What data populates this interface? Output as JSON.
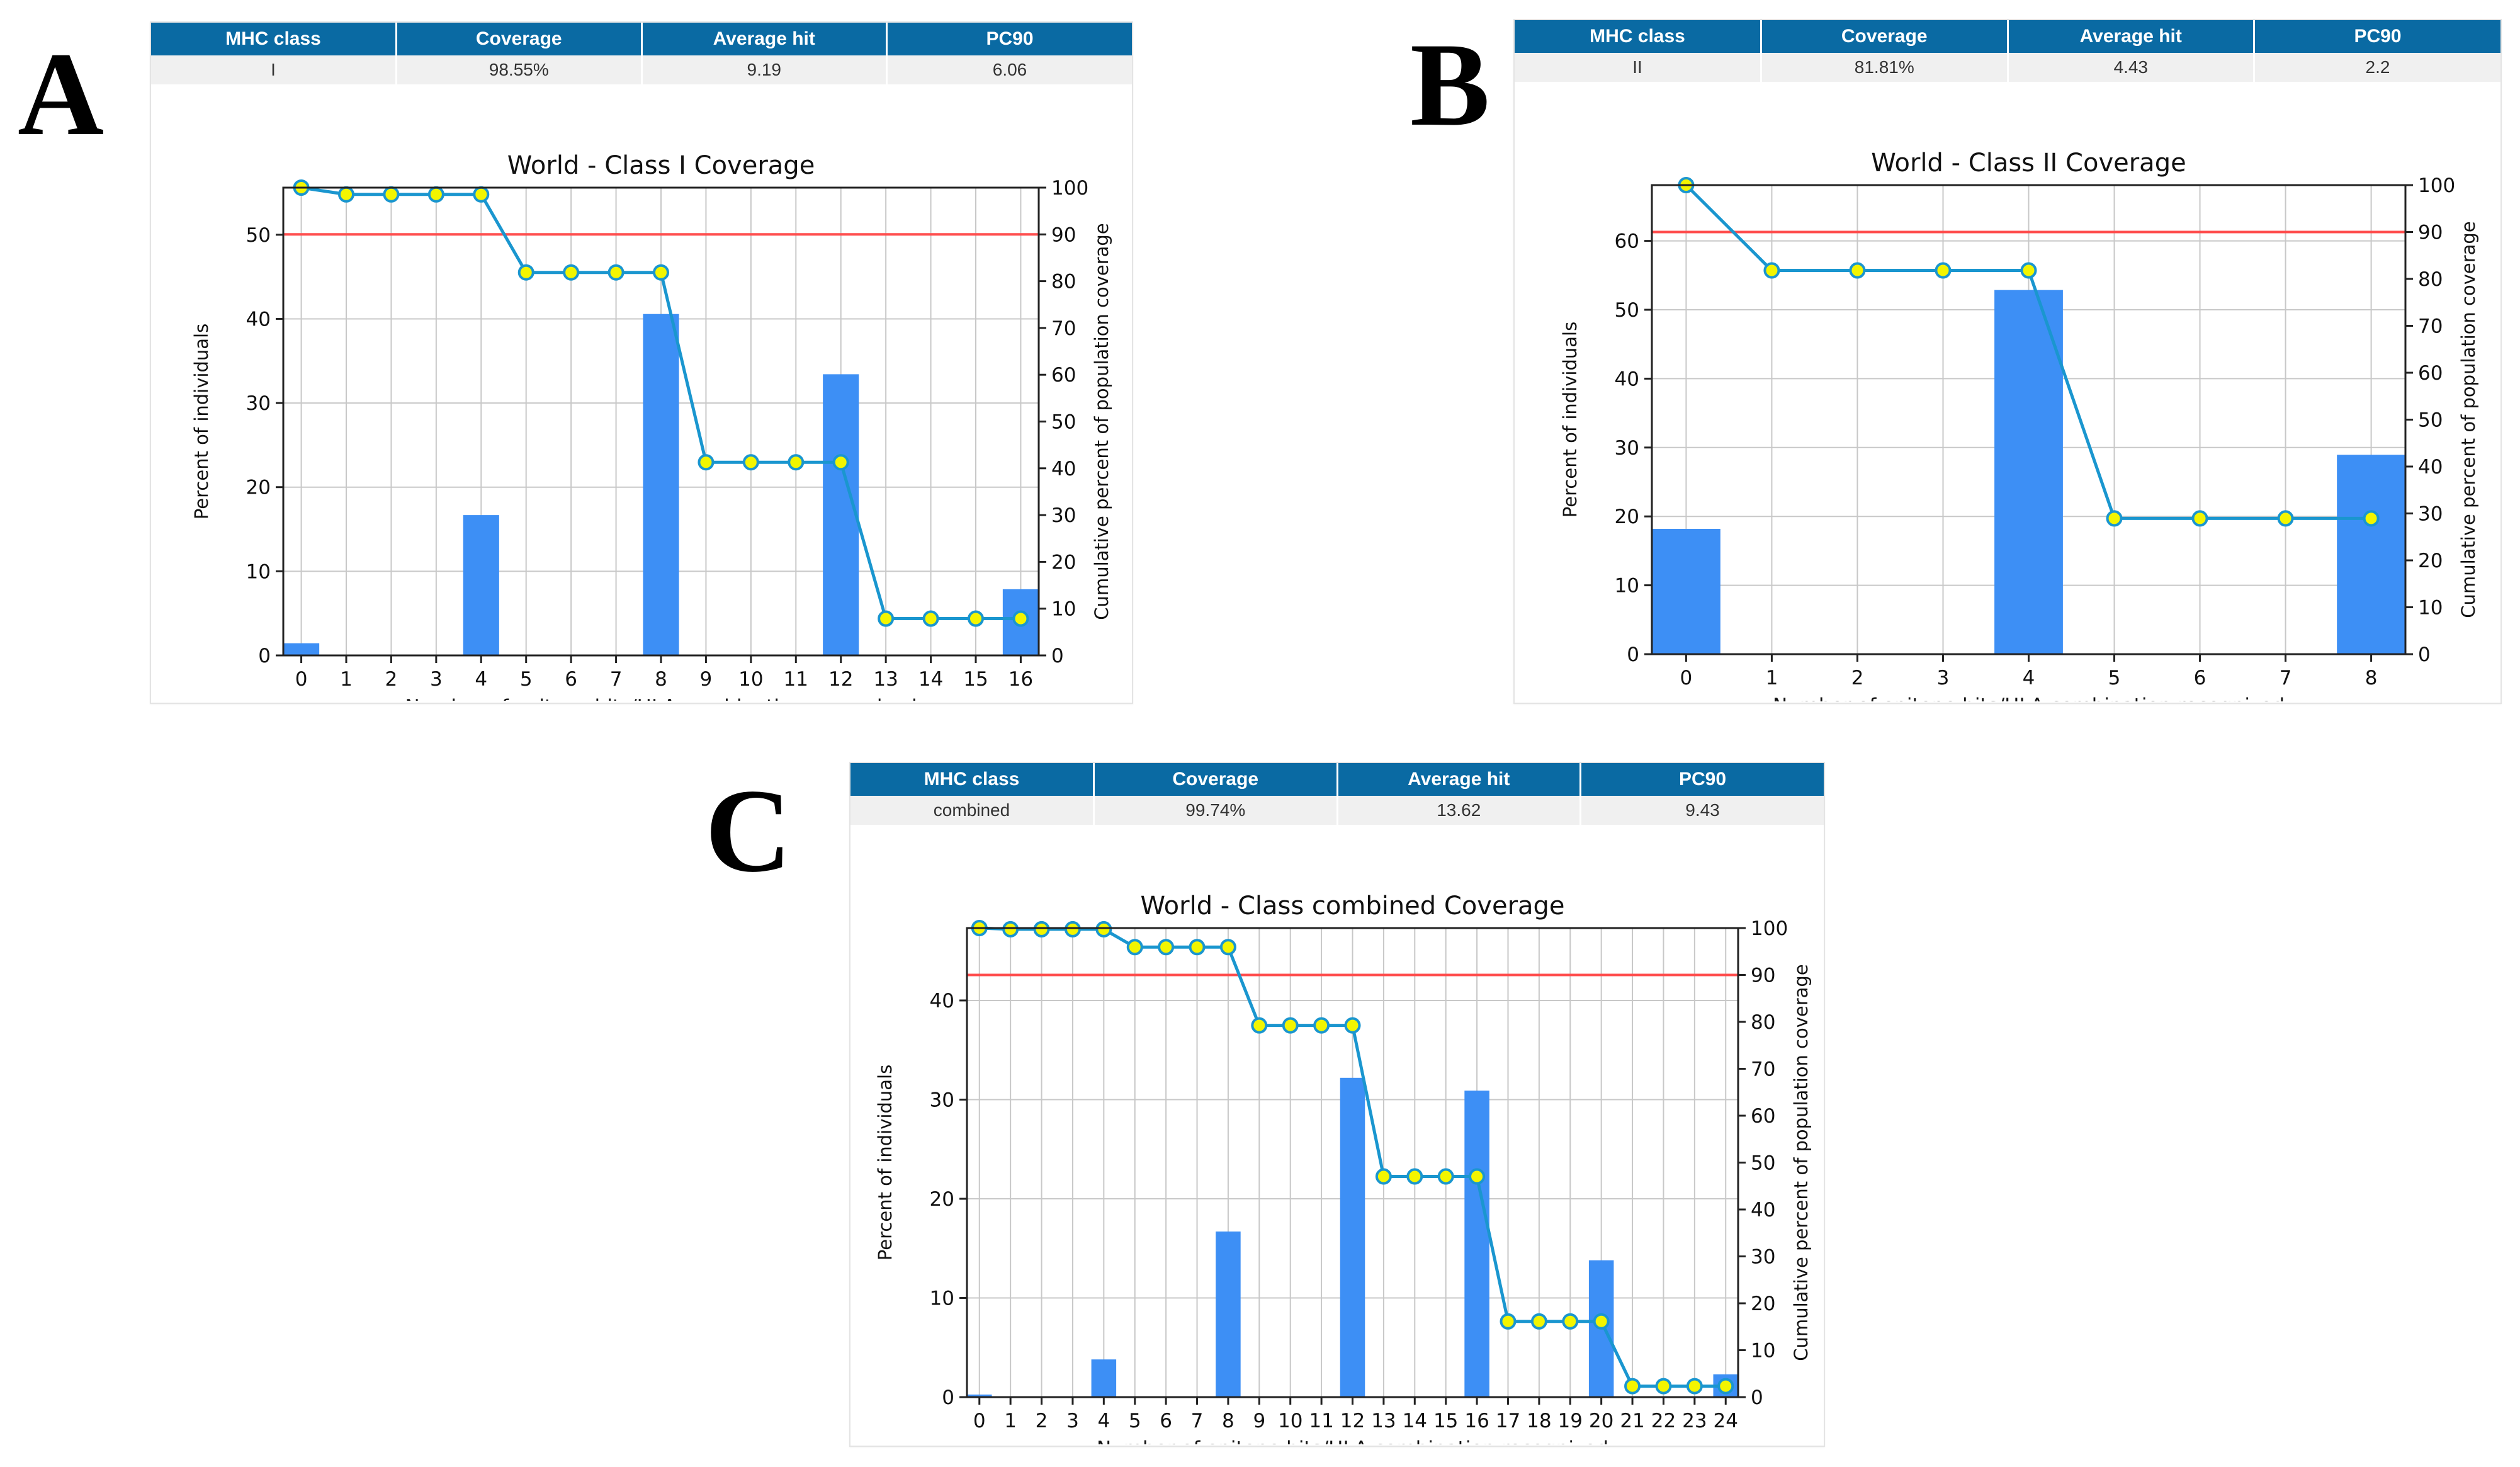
{
  "panels": [
    {
      "letter": "A",
      "table": {
        "headers": [
          "MHC class",
          "Coverage",
          "Average hit",
          "PC90"
        ],
        "values": [
          "I",
          "98.55%",
          "9.19",
          "6.06"
        ]
      },
      "chart_data": {
        "type": "bar+line",
        "title": "World - Class I Coverage",
        "xlabel": "Number of epitope hits/HLA combination recognized",
        "ylabel": "Percent of individuals",
        "y2label": "Cumulative percent of population coverage",
        "categories": [
          "0",
          "1",
          "2",
          "3",
          "4",
          "5",
          "6",
          "7",
          "8",
          "9",
          "10",
          "11",
          "12",
          "13",
          "14",
          "15",
          "16"
        ],
        "bar_values": [
          1.45,
          0,
          0,
          0,
          16.68,
          0,
          0,
          0,
          40.58,
          0,
          0,
          0,
          33.42,
          0,
          0,
          0,
          7.87
        ],
        "cumulative": [
          100,
          98.55,
          98.55,
          98.55,
          98.55,
          81.87,
          81.87,
          81.87,
          81.87,
          41.29,
          41.29,
          41.29,
          41.29,
          7.87,
          7.87,
          7.87,
          7.87
        ],
        "ylim": [
          0,
          55.6
        ],
        "y_ticks": [
          0,
          10,
          20,
          30,
          40,
          50
        ],
        "y2lim": [
          0,
          100
        ],
        "y2_ticks": [
          0,
          10,
          20,
          30,
          40,
          50,
          60,
          70,
          80,
          90,
          100
        ],
        "reference_line": 90,
        "colors": {
          "bar": "#3d8ff5",
          "line": "#1a96cf",
          "marker_fill": "#f3f500",
          "marker_edge": "#1a96cf",
          "ref_line": "#ff4d4d",
          "grid": "#c8c8c8"
        }
      }
    },
    {
      "letter": "B",
      "table": {
        "headers": [
          "MHC class",
          "Coverage",
          "Average hit",
          "PC90"
        ],
        "values": [
          "II",
          "81.81%",
          "4.43",
          "2.2"
        ]
      },
      "chart_data": {
        "type": "bar+line",
        "title": "World - Class II Coverage",
        "xlabel": "Number of epitope hits/HLA combination recognized",
        "ylabel": "Percent of individuals",
        "y2label": "Cumulative percent of population coverage",
        "categories": [
          "0",
          "1",
          "2",
          "3",
          "4",
          "5",
          "6",
          "7",
          "8"
        ],
        "bar_values": [
          18.19,
          0,
          0,
          0,
          52.87,
          0,
          0,
          0,
          28.94
        ],
        "cumulative": [
          100,
          81.81,
          81.81,
          81.81,
          81.81,
          28.94,
          28.94,
          28.94,
          28.94
        ],
        "ylim": [
          0,
          68.1
        ],
        "y_ticks": [
          0,
          10,
          20,
          30,
          40,
          50,
          60
        ],
        "y2lim": [
          0,
          100
        ],
        "y2_ticks": [
          0,
          10,
          20,
          30,
          40,
          50,
          60,
          70,
          80,
          90,
          100
        ],
        "reference_line": 90,
        "colors": {
          "bar": "#3d8ff5",
          "line": "#1a96cf",
          "marker_fill": "#f3f500",
          "marker_edge": "#1a96cf",
          "ref_line": "#ff4d4d",
          "grid": "#c8c8c8"
        }
      }
    },
    {
      "letter": "C",
      "table": {
        "headers": [
          "MHC class",
          "Coverage",
          "Average hit",
          "PC90"
        ],
        "values": [
          "combined",
          "99.74%",
          "13.62",
          "9.43"
        ]
      },
      "chart_data": {
        "type": "bar+line",
        "title": "World - Class combined Coverage",
        "xlabel": "Number of epitope hits/HLA combination recognized",
        "ylabel": "Percent of individuals",
        "y2label": "Cumulative percent of population coverage",
        "categories": [
          "0",
          "1",
          "2",
          "3",
          "4",
          "5",
          "6",
          "7",
          "8",
          "9",
          "10",
          "11",
          "12",
          "13",
          "14",
          "15",
          "16",
          "17",
          "18",
          "19",
          "20",
          "21",
          "22",
          "23",
          "24"
        ],
        "bar_values": [
          0.26,
          0,
          0,
          0,
          3.8,
          0,
          0,
          0,
          16.7,
          0,
          0,
          0,
          32.2,
          0,
          0,
          0,
          30.9,
          0,
          0,
          0,
          13.8,
          0,
          0,
          0,
          2.3
        ],
        "cumulative": [
          100,
          99.74,
          99.74,
          99.74,
          99.74,
          95.94,
          95.94,
          95.94,
          95.94,
          79.24,
          79.24,
          79.24,
          79.24,
          47.04,
          47.04,
          47.04,
          47.04,
          16.14,
          16.14,
          16.14,
          16.14,
          2.34,
          2.34,
          2.34,
          2.34
        ],
        "ylim": [
          0,
          47.3
        ],
        "y_ticks": [
          0,
          10,
          20,
          30,
          40
        ],
        "y2lim": [
          0,
          100
        ],
        "y2_ticks": [
          0,
          10,
          20,
          30,
          40,
          50,
          60,
          70,
          80,
          90,
          100
        ],
        "reference_line": 90,
        "colors": {
          "bar": "#3d8ff5",
          "line": "#1a96cf",
          "marker_fill": "#f3f500",
          "marker_edge": "#1a96cf",
          "ref_line": "#ff4d4d",
          "grid": "#c8c8c8"
        }
      }
    }
  ]
}
